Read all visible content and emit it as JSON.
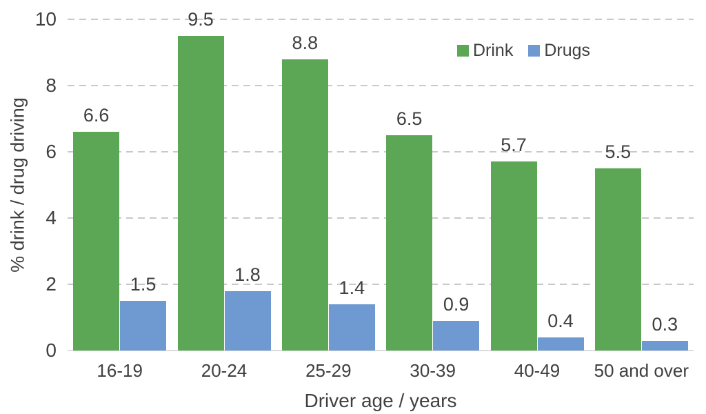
{
  "chart_data": {
    "type": "bar",
    "title": "",
    "categories": [
      "16-19",
      "20-24",
      "25-29",
      "30-39",
      "40-49",
      "50 and over"
    ],
    "series": [
      {
        "name": "Drink",
        "color": "#5CA756",
        "values": [
          6.6,
          9.5,
          8.8,
          6.5,
          5.7,
          5.5
        ]
      },
      {
        "name": "Drugs",
        "color": "#6F9AD1",
        "values": [
          1.5,
          1.8,
          1.4,
          0.9,
          0.4,
          0.3
        ]
      }
    ],
    "xlabel": "Driver age / years",
    "ylabel": "% drink / drug driving",
    "ylim": [
      0,
      10
    ],
    "yticks": [
      0,
      2,
      4,
      6,
      8,
      10
    ],
    "grid": "horizontal-dashed",
    "legend_position": "inside-top-right",
    "data_labels": true
  },
  "styles": {
    "text_color": "#404040",
    "grid_color": "#c9c9c9",
    "axis_line_color": "#dcdcdc",
    "background": "#ffffff"
  }
}
